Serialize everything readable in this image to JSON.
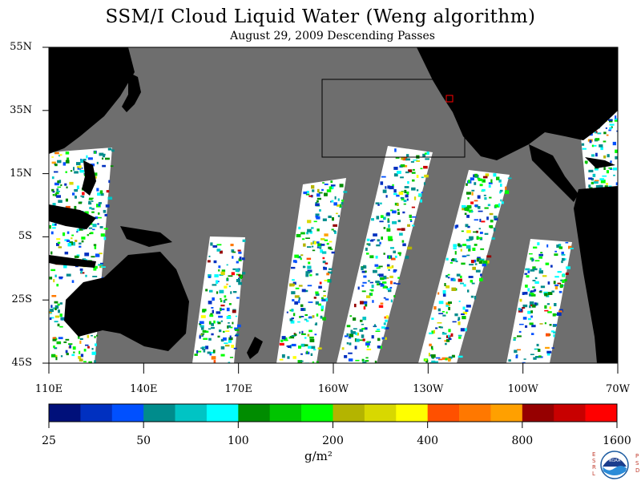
{
  "title": "SSM/I Cloud Liquid Water (Weng algorithm)",
  "subtitle": "August 29, 2009  Descending Passes",
  "lat_labels": [
    "55N",
    "35N",
    "15N",
    "5S",
    "25S",
    "45S"
  ],
  "lon_labels": [
    "110E",
    "140E",
    "170E",
    "160W",
    "130W",
    "100W",
    "70W"
  ],
  "colorbar": {
    "tick_labels": [
      "25",
      "50",
      "100",
      "200",
      "400",
      "800",
      "1600"
    ],
    "units": "g/m²",
    "colors": [
      "#00107a",
      "#0030c0",
      "#0050ff",
      "#008c8c",
      "#00c4c4",
      "#00ffff",
      "#008c00",
      "#00c400",
      "#00ff00",
      "#b4b400",
      "#d8d800",
      "#ffff00",
      "#ff5000",
      "#ff7800",
      "#ffa000",
      "#960000",
      "#c80000",
      "#ff0000"
    ]
  },
  "map": {
    "ocean_gap_color": "#6e6e6e",
    "land_color": "#000000",
    "no_data_color": "#ffffff",
    "box_color": "#000000",
    "marker_color": "#ff0000"
  },
  "logo": {
    "name": "noaa-logo",
    "left_text": "ESRL",
    "right_text": "PSD",
    "center_text": "NOAA"
  }
}
